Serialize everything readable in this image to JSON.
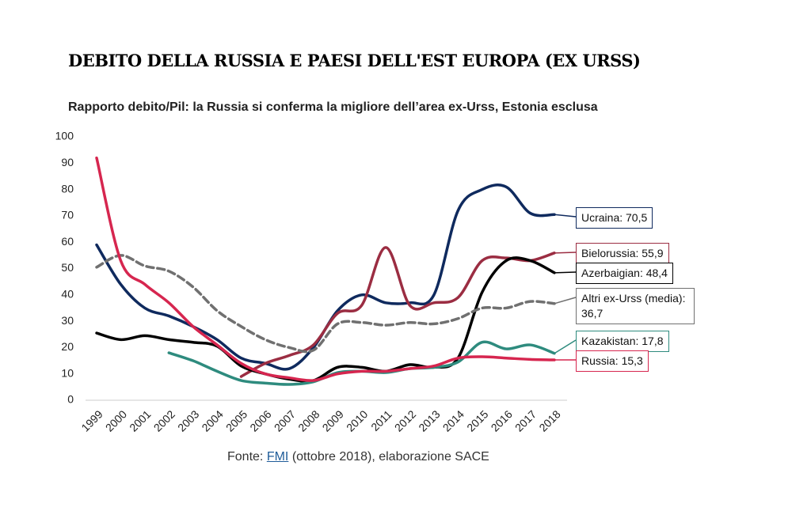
{
  "chart_data": {
    "type": "line",
    "title": "DEBITO DELLA RUSSIA E PAESI DELL'EST EUROPA (EX URSS)",
    "subtitle": "Rapporto debito/Pil: la Russia si conferma la migliore dell’area ex-Urss, Estonia esclusa",
    "source": {
      "prefix": "Fonte:",
      "link": "FMI",
      "suffix": "(ottobre 2018), elaborazione SACE"
    },
    "categories": [
      "1999",
      "2000",
      "2001",
      "2002",
      "2003",
      "2004",
      "2005",
      "2006",
      "2007",
      "2008",
      "2009",
      "2010",
      "2011",
      "2012",
      "2013",
      "2014",
      "2015",
      "2016",
      "2017",
      "2018"
    ],
    "ylim": [
      0,
      100
    ],
    "yticks": [
      0,
      10,
      20,
      30,
      40,
      50,
      60,
      70,
      80,
      90,
      100
    ],
    "series": [
      {
        "name": "Ucraina",
        "end_label": "Ucraina: 70,5",
        "color": "#0f2a5e",
        "values": [
          59,
          44,
          35,
          32,
          28,
          23,
          16,
          14,
          12,
          20,
          34,
          40,
          37,
          37,
          40,
          72,
          80,
          81,
          71,
          70.5
        ]
      },
      {
        "name": "Bielorussia",
        "end_label": "Bielorussia: 55,9",
        "color": "#9b2d42",
        "values": [
          null,
          null,
          null,
          null,
          null,
          null,
          9,
          14,
          17,
          21,
          33,
          36,
          58,
          36,
          37,
          39,
          53,
          54,
          53,
          55.9
        ]
      },
      {
        "name": "Azerbaigian",
        "end_label": "Azerbaigian: 48,4",
        "color": "#000000",
        "values": [
          25.5,
          23,
          24.5,
          23,
          22,
          20.5,
          13,
          10,
          8,
          7.5,
          12.5,
          12.5,
          11,
          13.5,
          12.5,
          16,
          41,
          53,
          53,
          48.4
        ]
      },
      {
        "name": "Altri ex-Urss (media)",
        "end_label": "Altri ex-Urss (media): 36,7",
        "color": "#707070",
        "dashed": true,
        "values": [
          50.5,
          55,
          51,
          49,
          43,
          34,
          28,
          23,
          20,
          19,
          29,
          29.5,
          28.5,
          29.5,
          29,
          31,
          35,
          35,
          37.5,
          36.7
        ]
      },
      {
        "name": "Kazakistan",
        "end_label": "Kazakistan: 17,8",
        "color": "#2e8b7e",
        "values": [
          null,
          null,
          null,
          18,
          15,
          11,
          7.5,
          6.5,
          6,
          7,
          10.5,
          11,
          10.5,
          12,
          12.5,
          14.5,
          22,
          19.5,
          21,
          17.8
        ]
      },
      {
        "name": "Russia",
        "end_label": "Russia: 15,3",
        "color": "#d6264f",
        "values": [
          92,
          53,
          44,
          37,
          28,
          21,
          14,
          10,
          8.5,
          7.5,
          10,
          11,
          11,
          12,
          13,
          16,
          16.5,
          16,
          15.5,
          15.3
        ]
      }
    ]
  }
}
